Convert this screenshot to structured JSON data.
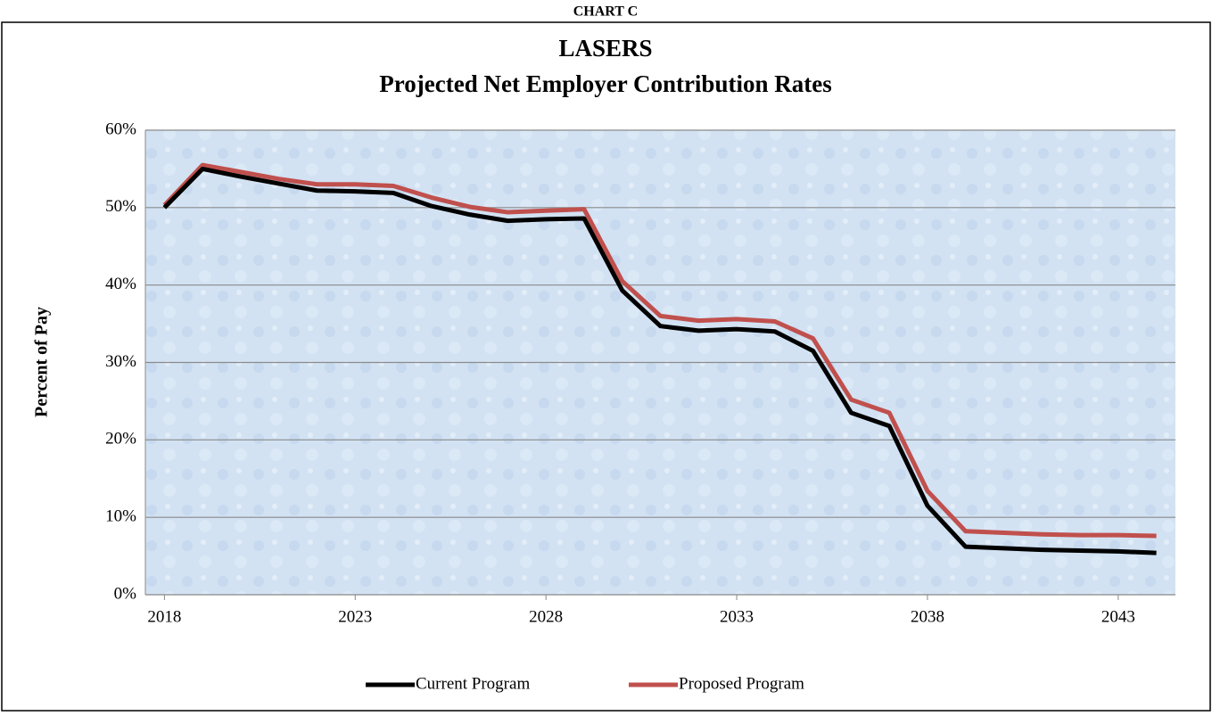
{
  "header": "CHART C",
  "chart_data": {
    "type": "line",
    "title": "LASERS",
    "subtitle": "Projected Net Employer Contribution Rates",
    "y_label": "Percent of Pay",
    "x": [
      2018,
      2019,
      2020,
      2021,
      2022,
      2023,
      2024,
      2025,
      2026,
      2027,
      2028,
      2029,
      2030,
      2031,
      2032,
      2033,
      2034,
      2035,
      2036,
      2037,
      2038,
      2039,
      2040,
      2041,
      2042,
      2043,
      2044
    ],
    "xlim": [
      2017.5,
      2044.5
    ],
    "xticks": [
      2018,
      2023,
      2028,
      2033,
      2038,
      2043
    ],
    "ylim": [
      0,
      60
    ],
    "yticks": [
      {
        "value": 0,
        "label": "0%"
      },
      {
        "value": 10,
        "label": "10%"
      },
      {
        "value": 20,
        "label": "20%"
      },
      {
        "value": 30,
        "label": "30%"
      },
      {
        "value": 40,
        "label": "40%"
      },
      {
        "value": 50,
        "label": "50%"
      },
      {
        "value": 60,
        "label": "60%"
      }
    ],
    "grid": true,
    "legend": "bottom",
    "series": [
      {
        "name": "Current Program",
        "color": "#000000",
        "values": [
          50.0,
          55.0,
          54.0,
          53.1,
          52.2,
          52.1,
          51.9,
          50.2,
          49.1,
          48.3,
          48.5,
          48.6,
          39.3,
          34.7,
          34.1,
          34.3,
          34.0,
          31.5,
          23.5,
          21.8,
          11.5,
          6.2,
          6.0,
          5.8,
          5.7,
          5.6,
          5.4
        ]
      },
      {
        "name": "Proposed Program",
        "color": "#c0504d",
        "values": [
          50.3,
          55.5,
          54.6,
          53.7,
          53.0,
          53.0,
          52.8,
          51.3,
          50.1,
          49.4,
          49.6,
          49.8,
          40.5,
          36.0,
          35.4,
          35.6,
          35.3,
          33.1,
          25.2,
          23.5,
          13.4,
          8.2,
          8.0,
          7.8,
          7.7,
          7.7,
          7.6
        ]
      }
    ]
  }
}
